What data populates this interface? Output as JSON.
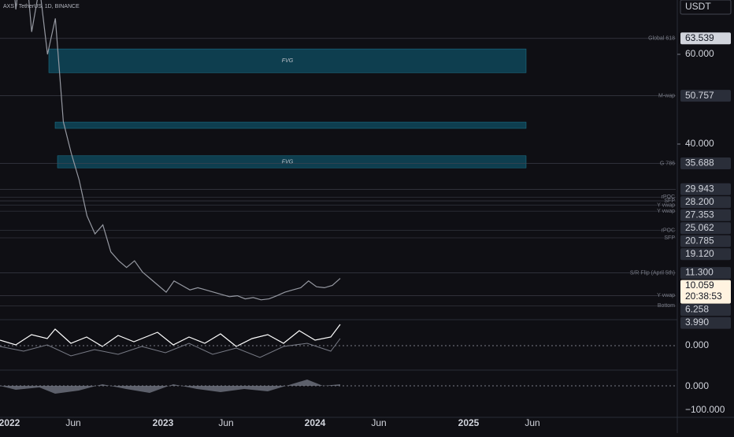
{
  "header": {
    "symbol": "AXS / TetherUS, 1D, BINANCE",
    "currency": "USDT"
  },
  "price_axis": {
    "ylim": [
      1.05,
      72.1
    ],
    "yticks": [
      {
        "value": 60,
        "label": "60.000"
      },
      {
        "value": 40,
        "label": "40.000"
      }
    ]
  },
  "levels": [
    {
      "name": "Global 618",
      "value": 63.539,
      "label": "63.539"
    },
    {
      "name": "M-wap",
      "value": 50.757,
      "label": "50.757"
    },
    {
      "name": "G 786",
      "value": 35.688,
      "label": "35.688"
    },
    {
      "value": 29.943,
      "label": "29.943"
    },
    {
      "name": "rPOC",
      "value": 28.2,
      "label": "28.200"
    },
    {
      "name": "SFP",
      "value": 27.353,
      "label": "27.353"
    },
    {
      "name": "Y vwap",
      "value": 26.4
    },
    {
      "name": "Y vwap",
      "value": 25.062,
      "label": "25.062"
    },
    {
      "name": "rPOC",
      "value": 20.785,
      "label": "20.785"
    },
    {
      "name": "SFP",
      "value": 19.12,
      "label": "19.120"
    },
    {
      "name": "S/R Flip (April 5th)",
      "value": 11.3,
      "label": "11.300"
    },
    {
      "name": "Y vwap",
      "value": 6.258,
      "label": "6.258"
    },
    {
      "name": "Bottom",
      "value": 3.99,
      "label": "3.990"
    }
  ],
  "current_price": {
    "value": 10.059,
    "label": "10.059",
    "countdown": "20:38:53"
  },
  "fvg_zones": [
    {
      "label": "FVG",
      "top": 61.2,
      "bottom": 55.9
    },
    {
      "top": 44.9,
      "bottom": 43.5
    },
    {
      "label": "FVG",
      "top": 37.4,
      "bottom": 34.7
    }
  ],
  "price_series": [
    80,
    90,
    70,
    85,
    65,
    75,
    60,
    68,
    45,
    38,
    32,
    24,
    20,
    22,
    16,
    14,
    12.5,
    14,
    11.5,
    10,
    8.5,
    7,
    9.5,
    8.5,
    7.5,
    8,
    7.5,
    7,
    6.5,
    6,
    6.2,
    5.5,
    5.8,
    5.3,
    5.5,
    6.2,
    7,
    7.5,
    8,
    9.5,
    8.2,
    8,
    8.5,
    10.059
  ],
  "time_axis": [
    "2022",
    "Jun",
    "2023",
    "Jun",
    "2024",
    "Jun",
    "2025",
    "Jun"
  ],
  "oscillators": [
    {
      "zero_label": "0.000"
    },
    {
      "zero_label": "0.000",
      "low_label": "−100.000"
    }
  ]
}
